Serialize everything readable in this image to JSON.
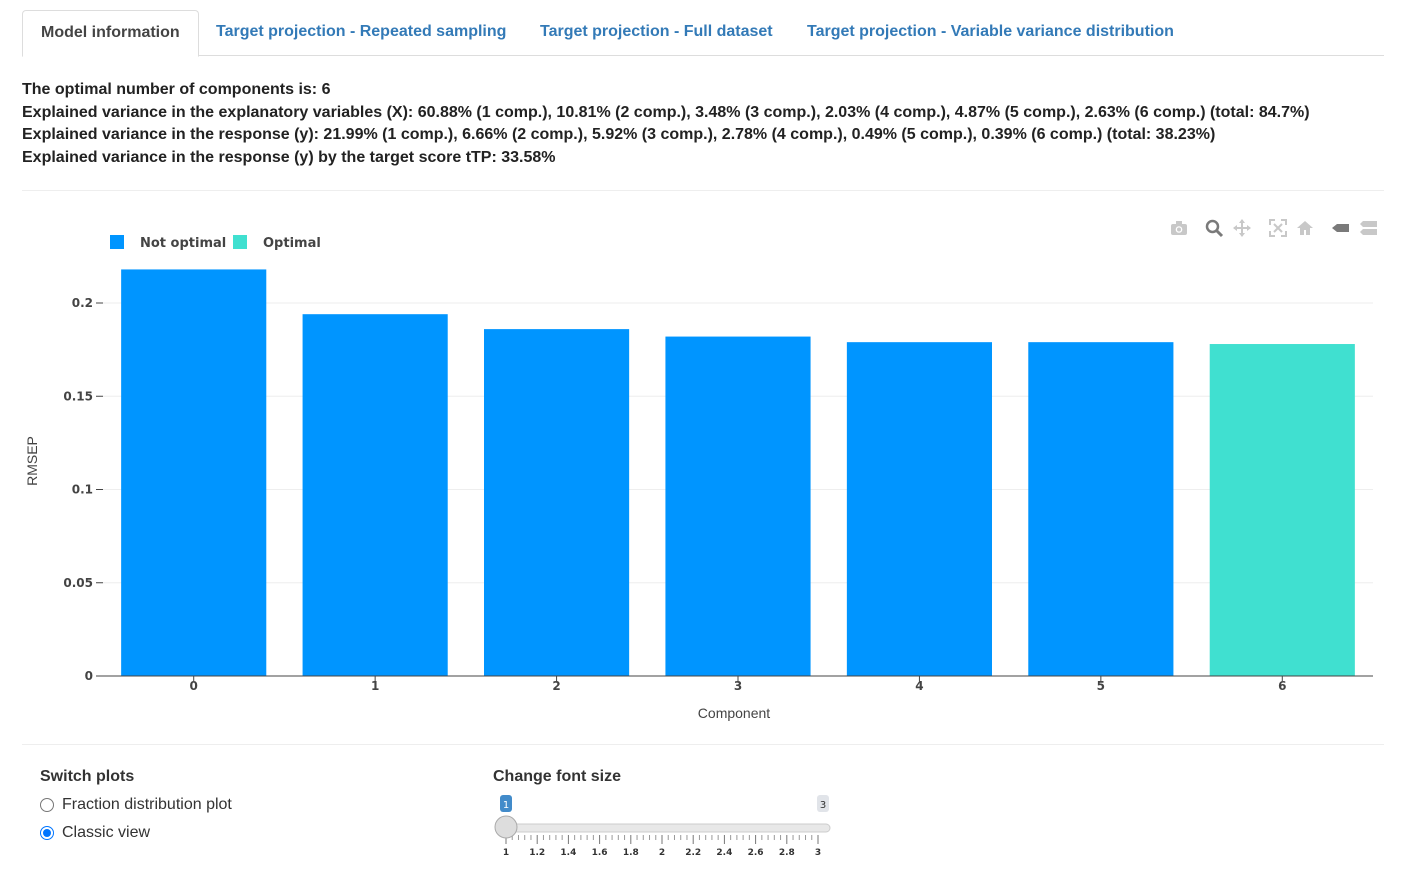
{
  "tabs": [
    {
      "label": "Model information",
      "active": true
    },
    {
      "label": "Target projection - Repeated sampling",
      "active": false
    },
    {
      "label": "Target projection - Full dataset",
      "active": false
    },
    {
      "label": "Target projection - Variable variance distribution",
      "active": false
    }
  ],
  "info": {
    "optimal": "The optimal number of components is: 6",
    "var_x": "Explained variance in the explanatory variables (X): 60.88% (1 comp.), 10.81% (2 comp.), 3.48% (3 comp.), 2.03% (4 comp.), 4.87% (5 comp.), 2.63% (6 comp.) (total: 84.7%)",
    "var_y": "Explained variance in the response (y): 21.99% (1 comp.), 6.66% (2 comp.), 5.92% (3 comp.), 2.78% (4 comp.), 0.49% (5 comp.), 0.39% (6 comp.) (total: 38.23%)",
    "var_ttp": "Explained variance in the response (y) by the target score tTP: 33.58%"
  },
  "modebar": [
    "camera-icon",
    "zoom-icon",
    "pan-icon",
    "autoscale-icon",
    "home-icon",
    "hover-closest-icon",
    "hover-compare-icon"
  ],
  "colors": {
    "not_optimal": "#0095ff",
    "optimal": "#40e0d0",
    "tab_link": "#337ab7",
    "radio_accent": "#0075ff"
  },
  "chart_data": {
    "type": "bar",
    "categories": [
      "0",
      "1",
      "2",
      "3",
      "4",
      "5",
      "6"
    ],
    "values": [
      0.218,
      0.194,
      0.186,
      0.182,
      0.179,
      0.179,
      0.178
    ],
    "series_of_bar": [
      "Not optimal",
      "Not optimal",
      "Not optimal",
      "Not optimal",
      "Not optimal",
      "Not optimal",
      "Optimal"
    ],
    "legend": [
      "Not optimal",
      "Optimal"
    ],
    "legend_placement": "top-left",
    "xlabel": "Component",
    "ylabel": "RMSEP",
    "ylim": [
      0,
      0.2
    ],
    "yticks": [
      "0",
      "0.05",
      "0.1",
      "0.15",
      "0.2"
    ],
    "grid": true
  },
  "controls": {
    "switch_title": "Switch plots",
    "radio_fraction": "Fraction distribution plot",
    "radio_classic": "Classic view",
    "radio_selected": "Classic view",
    "font_title": "Change font size",
    "slider_min": 1,
    "slider_max": 3,
    "slider_value": 1,
    "slider_min_label": "1",
    "slider_max_label": "3",
    "slider_value_label": "1",
    "slider_ticks": [
      "1",
      "1.2",
      "1.4",
      "1.6",
      "1.8",
      "2",
      "2.2",
      "2.4",
      "2.6",
      "2.8",
      "3"
    ]
  }
}
